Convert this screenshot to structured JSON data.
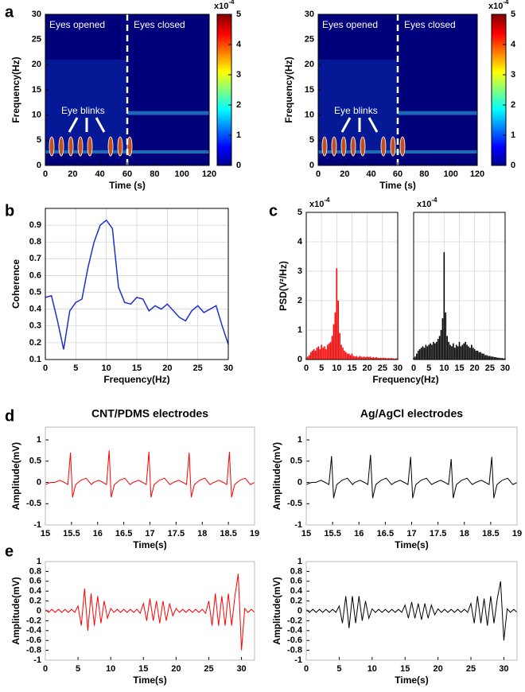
{
  "panel_labels": [
    "a",
    "b",
    "c",
    "d",
    "e"
  ],
  "chart_data": [
    {
      "type": "spectrogram",
      "xlabel": "Time (s)",
      "ylabel": "Frequency(Hz)",
      "xlim": [
        0,
        120
      ],
      "xticks": [
        0,
        20,
        40,
        60,
        80,
        100,
        120
      ],
      "ylim": [
        0,
        30
      ],
      "yticks": [
        0,
        5,
        10,
        15,
        20,
        25,
        30
      ],
      "divider_x": 60,
      "annotations": {
        "left": "Eyes opened",
        "right": "Eyes closed",
        "blinks": "Eye blinks"
      },
      "colorbar_lim": [
        0,
        5
      ],
      "colorbar_ticks": [
        0,
        1,
        2,
        3,
        4,
        5
      ],
      "multiplier": {
        "base": "x10",
        "exponent": "-4"
      },
      "grid": false
    },
    {
      "type": "spectrogram",
      "xlabel": "Time (s)",
      "ylabel": "Frequency(Hz)",
      "xlim": [
        0,
        120
      ],
      "xticks": [
        0,
        20,
        40,
        60,
        80,
        100,
        120
      ],
      "ylim": [
        0,
        30
      ],
      "yticks": [
        0,
        5,
        10,
        15,
        20,
        25,
        30
      ],
      "divider_x": 60,
      "annotations": {
        "left": "Eyes opened",
        "right": "Eyes closed",
        "blinks": "Eye blinks"
      },
      "colorbar_lim": [
        0,
        5
      ],
      "colorbar_ticks": [
        0,
        1,
        2,
        3,
        4,
        5
      ],
      "multiplier": {
        "base": "x10",
        "exponent": "-4"
      },
      "grid": false
    },
    {
      "type": "line",
      "xlabel": "Frequency(Hz)",
      "ylabel": "Coherence",
      "color": "#1f2fd0",
      "xlim": [
        0,
        30
      ],
      "xticks": [
        0,
        5,
        10,
        15,
        20,
        25,
        30
      ],
      "ylim": [
        0.1,
        1.0
      ],
      "yticks": [
        0.1,
        0.2,
        0.3,
        0.4,
        0.5,
        0.6,
        0.7,
        0.8,
        0.9
      ],
      "grid": true,
      "x": [
        0,
        1,
        2,
        3,
        4,
        5,
        6,
        7,
        8,
        9,
        10,
        11,
        12,
        13,
        14,
        15,
        16,
        17,
        18,
        19,
        20,
        21,
        22,
        23,
        24,
        25,
        26,
        27,
        28,
        29,
        30
      ],
      "values": [
        0.47,
        0.48,
        0.33,
        0.16,
        0.39,
        0.44,
        0.46,
        0.65,
        0.8,
        0.9,
        0.93,
        0.88,
        0.53,
        0.44,
        0.43,
        0.47,
        0.46,
        0.39,
        0.42,
        0.4,
        0.43,
        0.39,
        0.35,
        0.33,
        0.39,
        0.42,
        0.38,
        0.4,
        0.42,
        0.3,
        0.19
      ]
    },
    {
      "type": "stem",
      "xlabel": "Frequency(Hz)",
      "ylabel": "PSD(V²/Hz)",
      "color": "#ff0000",
      "multiplier": {
        "base": "x10",
        "exponent": "-4"
      },
      "xlim": [
        0,
        30
      ],
      "xticks": [
        0,
        5,
        10,
        15,
        20,
        25,
        30
      ],
      "ylim": [
        0,
        5
      ],
      "yticks": [
        0,
        1,
        2,
        3,
        4,
        5
      ],
      "grid": true,
      "show_ytick_labels": true,
      "x": [
        0,
        0.5,
        1,
        1.5,
        2,
        2.5,
        3,
        3.5,
        4,
        4.5,
        5,
        5.5,
        6,
        6.5,
        7,
        7.5,
        8,
        8.5,
        9,
        9.5,
        10,
        10.5,
        11,
        11.5,
        12,
        12.5,
        13,
        13.5,
        14,
        14.5,
        15,
        15.5,
        16,
        16.5,
        17,
        17.5,
        18,
        18.5,
        19,
        19.5,
        20,
        20.5,
        21,
        21.5,
        22,
        22.5,
        23,
        23.5,
        24,
        24.5,
        25,
        25.5,
        26,
        26.5,
        27,
        27.5,
        28,
        28.5,
        29,
        29.5,
        30
      ],
      "values": [
        0.05,
        0.1,
        0.15,
        0.25,
        0.3,
        0.35,
        0.3,
        0.4,
        0.45,
        0.35,
        0.5,
        0.4,
        0.45,
        0.35,
        0.5,
        0.55,
        0.6,
        0.8,
        1.2,
        1.6,
        3.1,
        2.0,
        0.9,
        0.5,
        0.4,
        0.3,
        0.25,
        0.2,
        0.2,
        0.15,
        0.2,
        0.12,
        0.1,
        0.12,
        0.08,
        0.12,
        0.1,
        0.08,
        0.1,
        0.08,
        0.1,
        0.08,
        0.1,
        0.06,
        0.08,
        0.06,
        0.08,
        0.06,
        0.05,
        0.06,
        0.05,
        0.06,
        0.05,
        0.04,
        0.05,
        0.04,
        0.05,
        0.04,
        0.03,
        0.04,
        0.03
      ]
    },
    {
      "type": "stem",
      "color": "#000000",
      "multiplier": {
        "base": "x10",
        "exponent": "-4"
      },
      "xlim": [
        0,
        30
      ],
      "xticks": [
        0,
        5,
        10,
        15,
        20,
        25,
        30
      ],
      "ylim": [
        0,
        5
      ],
      "yticks": [
        0,
        1,
        2,
        3,
        4,
        5
      ],
      "grid": true,
      "show_ytick_labels": false,
      "x": [
        0,
        0.5,
        1,
        1.5,
        2,
        2.5,
        3,
        3.5,
        4,
        4.5,
        5,
        5.5,
        6,
        6.5,
        7,
        7.5,
        8,
        8.5,
        9,
        9.5,
        10,
        10.5,
        11,
        11.5,
        12,
        12.5,
        13,
        13.5,
        14,
        14.5,
        15,
        15.5,
        16,
        16.5,
        17,
        17.5,
        18,
        18.5,
        19,
        19.5,
        20,
        20.5,
        21,
        21.5,
        22,
        22.5,
        23,
        23.5,
        24,
        24.5,
        25,
        25.5,
        26,
        26.5,
        27,
        27.5,
        28,
        28.5,
        29,
        29.5,
        30
      ],
      "values": [
        0.05,
        0.1,
        0.2,
        0.3,
        0.35,
        0.4,
        0.45,
        0.4,
        0.5,
        0.45,
        0.5,
        0.55,
        0.5,
        0.6,
        0.55,
        0.6,
        0.7,
        0.8,
        1.0,
        1.4,
        3.65,
        1.6,
        0.8,
        0.6,
        0.5,
        0.45,
        0.55,
        0.4,
        0.5,
        0.45,
        0.6,
        0.45,
        0.5,
        0.55,
        0.6,
        0.5,
        0.45,
        0.4,
        0.5,
        0.4,
        0.35,
        0.3,
        0.3,
        0.25,
        0.25,
        0.2,
        0.2,
        0.15,
        0.15,
        0.12,
        0.12,
        0.1,
        0.1,
        0.08,
        0.08,
        0.06,
        0.06,
        0.05,
        0.05,
        0.04,
        0.03
      ]
    },
    {
      "type": "line",
      "title": "CNT/PDMS electrodes",
      "xlabel": "Time(s)",
      "ylabel": "Amplitude(mV)",
      "color": "#ff0000",
      "xlim": [
        15,
        19
      ],
      "xticks": [
        15,
        15.5,
        16,
        16.5,
        17,
        17.5,
        18,
        18.5,
        19
      ],
      "ylim": [
        -1,
        1.3
      ],
      "yticks": [
        -1,
        -0.5,
        0,
        0.5,
        1
      ],
      "grid": false,
      "x": [
        15.0,
        15.1,
        15.18,
        15.28,
        15.36,
        15.43,
        15.48,
        15.52,
        15.58,
        15.68,
        15.78,
        15.88,
        15.92,
        16.02,
        16.1,
        16.17,
        16.22,
        16.26,
        16.32,
        16.42,
        16.52,
        16.62,
        16.68,
        16.78,
        16.86,
        16.93,
        16.98,
        17.02,
        17.08,
        17.18,
        17.28,
        17.38,
        17.45,
        17.55,
        17.63,
        17.7,
        17.75,
        17.79,
        17.85,
        17.95,
        18.05,
        18.15,
        18.22,
        18.32,
        18.4,
        18.47,
        18.52,
        18.56,
        18.62,
        18.72,
        18.82,
        18.92,
        19.0
      ],
      "values": [
        -0.05,
        0.0,
        0.0,
        0.05,
        0.0,
        -0.05,
        0.7,
        -0.35,
        -0.05,
        0.05,
        0.1,
        -0.05,
        0.0,
        0.05,
        0.0,
        -0.05,
        0.75,
        -0.35,
        -0.05,
        0.05,
        0.1,
        -0.05,
        0.0,
        0.05,
        0.0,
        -0.05,
        0.72,
        -0.35,
        -0.05,
        0.05,
        0.1,
        -0.05,
        0.0,
        0.05,
        0.0,
        -0.05,
        0.7,
        -0.35,
        -0.05,
        0.05,
        0.1,
        -0.05,
        0.0,
        0.05,
        0.0,
        -0.05,
        0.72,
        -0.35,
        -0.05,
        0.05,
        0.1,
        -0.05,
        0.0
      ]
    },
    {
      "type": "line",
      "title": "Ag/AgCl electrodes",
      "xlabel": "Time(s)",
      "ylabel": "Amplitude(mV)",
      "color": "#000000",
      "xlim": [
        15,
        19
      ],
      "xticks": [
        15,
        15.5,
        16,
        16.5,
        17,
        17.5,
        18,
        18.5,
        19
      ],
      "ylim": [
        -1,
        1.3
      ],
      "yticks": [
        -1,
        -0.5,
        0,
        0.5,
        1
      ],
      "grid": false,
      "x": [
        15.0,
        15.1,
        15.18,
        15.28,
        15.36,
        15.43,
        15.48,
        15.52,
        15.58,
        15.68,
        15.78,
        15.88,
        15.92,
        16.02,
        16.1,
        16.17,
        16.22,
        16.26,
        16.32,
        16.42,
        16.52,
        16.62,
        16.68,
        16.78,
        16.86,
        16.93,
        16.98,
        17.02,
        17.08,
        17.18,
        17.28,
        17.38,
        17.45,
        17.55,
        17.63,
        17.7,
        17.75,
        17.79,
        17.85,
        17.95,
        18.05,
        18.15,
        18.22,
        18.32,
        18.4,
        18.47,
        18.52,
        18.56,
        18.62,
        18.72,
        18.82,
        18.92,
        19.0
      ],
      "values": [
        -0.05,
        0.0,
        0.0,
        0.05,
        0.0,
        -0.05,
        0.62,
        -0.37,
        -0.05,
        0.05,
        0.1,
        -0.05,
        0.0,
        0.05,
        0.0,
        -0.05,
        0.65,
        -0.37,
        -0.05,
        0.05,
        0.1,
        -0.05,
        0.0,
        0.05,
        0.0,
        -0.05,
        0.6,
        -0.37,
        -0.05,
        0.05,
        0.1,
        -0.05,
        0.0,
        0.05,
        0.0,
        -0.05,
        0.55,
        -0.37,
        -0.05,
        0.05,
        0.1,
        -0.05,
        0.0,
        0.05,
        0.0,
        -0.05,
        0.6,
        -0.37,
        -0.05,
        0.05,
        0.1,
        -0.05,
        0.0
      ]
    },
    {
      "type": "line",
      "xlabel": "Time(s)",
      "ylabel": "Amplitude(mV)",
      "color": "#ff0000",
      "xlim": [
        0,
        32
      ],
      "xticks": [
        0,
        5,
        10,
        15,
        20,
        25,
        30
      ],
      "ylim": [
        -1,
        1
      ],
      "yticks": [
        -1,
        -0.8,
        -0.6,
        -0.4,
        -0.2,
        0,
        0.2,
        0.4,
        0.6,
        0.8,
        1
      ],
      "grid": false,
      "x": [
        0,
        0.5,
        1,
        1.5,
        2,
        2.5,
        3,
        3.5,
        4,
        4.5,
        5,
        5.5,
        6,
        6.5,
        7,
        7.5,
        8,
        8.5,
        9,
        9.5,
        10,
        10.5,
        11,
        11.5,
        12,
        12.5,
        13,
        13.5,
        14,
        14.5,
        15,
        15.5,
        16,
        16.5,
        17,
        17.5,
        18,
        18.5,
        19,
        19.5,
        20,
        20.5,
        21,
        21.5,
        22,
        22.5,
        23,
        23.5,
        24,
        24.5,
        25,
        25.5,
        26,
        26.5,
        27,
        27.5,
        28,
        28.5,
        29,
        29.5,
        30,
        30.5,
        31,
        31.5,
        32
      ],
      "values": [
        0.03,
        -0.03,
        0.03,
        -0.03,
        0.03,
        -0.03,
        0.03,
        -0.03,
        0.03,
        -0.03,
        0.1,
        -0.3,
        0.45,
        -0.4,
        0.35,
        -0.3,
        0.3,
        -0.25,
        0.2,
        -0.15,
        0.05,
        -0.03,
        0.03,
        -0.03,
        0.03,
        -0.03,
        0.03,
        -0.03,
        0.03,
        -0.05,
        0.15,
        -0.2,
        0.25,
        -0.2,
        0.2,
        -0.25,
        0.2,
        -0.2,
        0.15,
        -0.1,
        0.05,
        -0.03,
        0.03,
        -0.03,
        0.03,
        -0.03,
        0.03,
        -0.03,
        0.03,
        -0.05,
        0.2,
        -0.3,
        0.35,
        -0.3,
        0.3,
        -0.3,
        0.35,
        -0.3,
        0.3,
        0.75,
        -0.8,
        0.05,
        -0.03,
        0.03,
        -0.03
      ]
    },
    {
      "type": "line",
      "xlabel": "Time(s)",
      "ylabel": "Amplitude(mV)",
      "color": "#000000",
      "xlim": [
        0,
        32
      ],
      "xticks": [
        0,
        5,
        10,
        15,
        20,
        25,
        30
      ],
      "ylim": [
        -1,
        1
      ],
      "yticks": [
        -1,
        -0.8,
        -0.6,
        -0.4,
        -0.2,
        0,
        0.2,
        0.4,
        0.6,
        0.8,
        1
      ],
      "grid": false,
      "x": [
        0,
        0.5,
        1,
        1.5,
        2,
        2.5,
        3,
        3.5,
        4,
        4.5,
        5,
        5.5,
        6,
        6.5,
        7,
        7.5,
        8,
        8.5,
        9,
        9.5,
        10,
        10.5,
        11,
        11.5,
        12,
        12.5,
        13,
        13.5,
        14,
        14.5,
        15,
        15.5,
        16,
        16.5,
        17,
        17.5,
        18,
        18.5,
        19,
        19.5,
        20,
        20.5,
        21,
        21.5,
        22,
        22.5,
        23,
        23.5,
        24,
        24.5,
        25,
        25.5,
        26,
        26.5,
        27,
        27.5,
        28,
        28.5,
        29,
        29.5,
        30,
        30.5,
        31,
        31.5,
        32
      ],
      "values": [
        0.03,
        -0.03,
        0.03,
        -0.03,
        0.03,
        -0.03,
        0.03,
        -0.03,
        0.03,
        -0.03,
        0.1,
        -0.25,
        0.3,
        -0.35,
        0.3,
        -0.25,
        0.3,
        -0.2,
        0.2,
        -0.15,
        0.04,
        -0.03,
        0.03,
        -0.03,
        0.03,
        -0.03,
        0.03,
        -0.03,
        0.03,
        -0.03,
        0.12,
        -0.15,
        0.18,
        -0.15,
        0.15,
        -0.18,
        0.15,
        -0.15,
        0.12,
        -0.08,
        0.04,
        -0.03,
        0.03,
        -0.03,
        0.03,
        -0.03,
        0.03,
        -0.03,
        0.03,
        -0.03,
        0.15,
        -0.25,
        0.3,
        -0.25,
        0.25,
        -0.3,
        0.3,
        -0.25,
        0.25,
        0.6,
        -0.6,
        0.04,
        -0.03,
        0.03,
        -0.03
      ]
    }
  ]
}
